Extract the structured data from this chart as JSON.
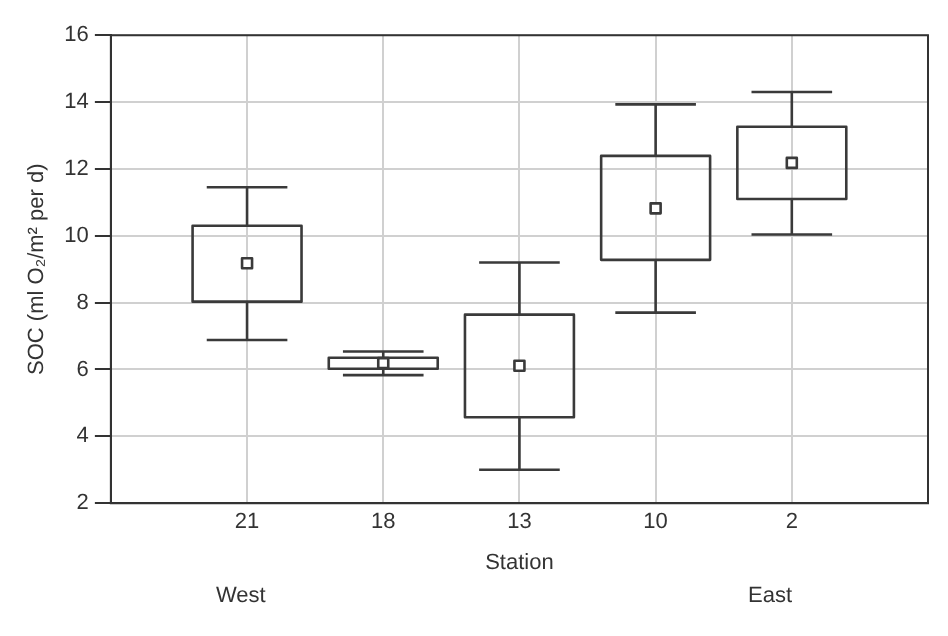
{
  "chart_data": {
    "type": "box",
    "xlabel": "Station",
    "ylabel": "SOC (ml O₂/m² per d)",
    "categories": [
      "21",
      "18",
      "13",
      "10",
      "2"
    ],
    "boxes": [
      {
        "low": 6.88,
        "q1": 8.03,
        "median": 9.18,
        "q3": 10.3,
        "high": 11.45
      },
      {
        "low": 5.83,
        "q1": 6.02,
        "median": 6.19,
        "q3": 6.35,
        "high": 6.54
      },
      {
        "low": 3.0,
        "q1": 4.57,
        "median": 6.11,
        "q3": 7.64,
        "high": 9.2
      },
      {
        "low": 7.7,
        "q1": 9.28,
        "median": 10.82,
        "q3": 12.39,
        "high": 13.93
      },
      {
        "low": 10.04,
        "q1": 11.1,
        "median": 12.18,
        "q3": 13.26,
        "high": 14.3
      }
    ],
    "color": "#3a3a3a",
    "marker": "square",
    "ylim": [
      2,
      16
    ],
    "yticks": [
      2,
      4,
      6,
      8,
      10,
      12,
      14,
      16
    ],
    "grid": true,
    "legend": false,
    "annotations": [
      "West",
      "East"
    ]
  }
}
